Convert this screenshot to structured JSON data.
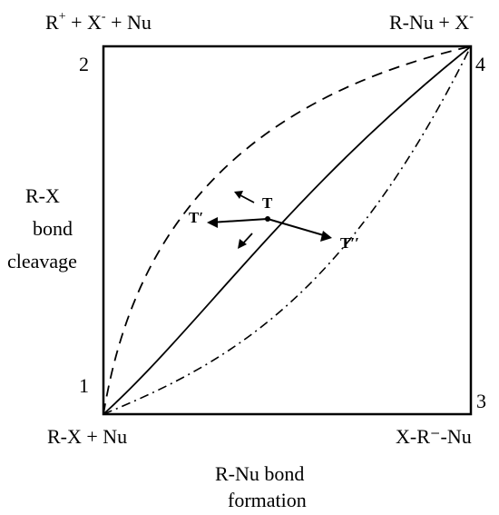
{
  "corners": {
    "top_left": {
      "species": "R",
      "charge1": "+",
      "mid1": " + X",
      "charge2": "-",
      "tail": " + Nu",
      "number": "2"
    },
    "top_right": {
      "text": "R-Nu + X",
      "charge": "-",
      "number": "4"
    },
    "bottom_left": {
      "text": "R-X + Nu",
      "number": "1"
    },
    "bottom_right": {
      "text": "X-R⁻-Nu",
      "number": "3"
    }
  },
  "y_axis_label": [
    "R-X",
    "bond",
    "cleavage"
  ],
  "x_axis_label": [
    "R-Nu bond",
    "formation"
  ],
  "transition_states": {
    "t": "T",
    "t_prime": "T′",
    "t_double_prime": "T′′"
  }
}
